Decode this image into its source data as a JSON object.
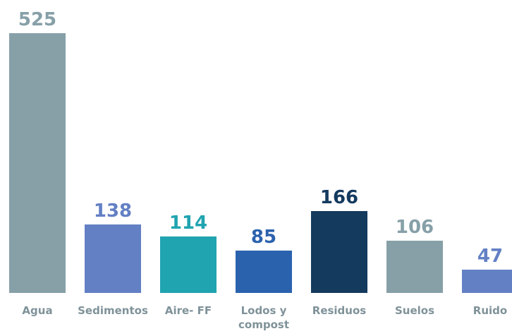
{
  "chart_data": {
    "type": "bar",
    "categories": [
      "Agua",
      "Sedimentos",
      "Aire- FF",
      "Lodos y compost",
      "Residuos",
      "Suelos",
      "Ruido"
    ],
    "values": [
      525,
      138,
      114,
      85,
      166,
      106,
      47
    ],
    "colors": [
      "#87a0a8",
      "#6380c4",
      "#20a4b0",
      "#2b62ae",
      "#143a5e",
      "#87a0a8",
      "#6380c4"
    ]
  }
}
